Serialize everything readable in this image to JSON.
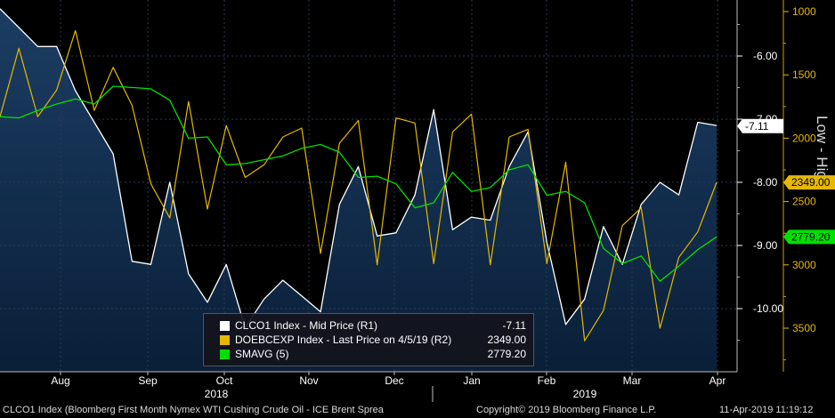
{
  "chart_data": {
    "type": "line",
    "x_labels": [
      "Aug",
      "Sep",
      "Oct",
      "Nov",
      "Dec",
      "Jan",
      "Feb",
      "Mar",
      "Apr"
    ],
    "year_labels": [
      "2018",
      "2019"
    ],
    "left_axis": {
      "ticks": [
        "-6.00",
        "-7.00",
        "-8.00",
        "-9.00",
        "-10.00"
      ],
      "range": [
        -11.0,
        -5.2
      ]
    },
    "right_axis": {
      "ticks": [
        "1000",
        "1500",
        "2000",
        "2500",
        "3000",
        "3500"
      ],
      "range": [
        1000,
        3800
      ],
      "inverted": true,
      "label": "Low - High"
    },
    "series": [
      {
        "name": "CLCO1 Index - Mid Price (R1)",
        "axis": "left",
        "style": "area",
        "color": "#ffffff",
        "fill": "#0e2a4a",
        "last_value": "-7.11",
        "values": [
          -5.25,
          -5.55,
          -5.85,
          -5.85,
          -6.55,
          -7.05,
          -7.55,
          -9.25,
          -9.3,
          -8.0,
          -9.45,
          -9.9,
          -9.3,
          -10.3,
          -9.85,
          -9.55,
          -9.8,
          -10.05,
          -8.35,
          -7.75,
          -8.85,
          -8.8,
          -8.2,
          -6.85,
          -8.75,
          -8.55,
          -8.6,
          -7.75,
          -7.2,
          -8.95,
          -10.25,
          -9.85,
          -8.7,
          -9.3,
          -8.35,
          -8.0,
          -8.2,
          -7.05,
          -7.1
        ]
      },
      {
        "name": "DOEBCEXP Index - Last Price on 4/5/19 (R2)",
        "axis": "right",
        "style": "line",
        "color": "#e6b800",
        "last_value": "2349.00",
        "values": [
          1830,
          1290,
          1830,
          1620,
          1150,
          1780,
          1440,
          1740,
          2360,
          2630,
          1710,
          2560,
          1900,
          2310,
          2210,
          1990,
          1920,
          2910,
          2040,
          1860,
          3000,
          1840,
          1880,
          2990,
          1950,
          1810,
          3000,
          1990,
          1930,
          2990,
          2190,
          3600,
          3360,
          2690,
          2550,
          3500,
          2940,
          2740,
          2349
        ]
      },
      {
        "name": "SMAVG (5)",
        "axis": "right",
        "style": "line",
        "color": "#00e000",
        "last_value": "2779.20",
        "values": [
          1830,
          1840,
          1780,
          1730,
          1690,
          1730,
          1590,
          1600,
          1610,
          1700,
          2000,
          1990,
          2210,
          2200,
          2170,
          2140,
          2080,
          2050,
          2110,
          2310,
          2300,
          2360,
          2550,
          2510,
          2270,
          2420,
          2390,
          2250,
          2210,
          2450,
          2420,
          2510,
          2870,
          2990,
          2930,
          3130,
          3010,
          2880,
          2779
        ]
      }
    ],
    "legend_placement": "bottom-center"
  },
  "legend": {
    "row1_name": "CLCO1 Index - Mid Price (R1)",
    "row1_value": "-7.11",
    "row2_name": "DOEBCEXP Index - Last Price on 4/5/19 (R2)",
    "row2_value": "2349.00",
    "row3_name": "SMAVG (5)",
    "row3_value": "2779.20"
  },
  "footer": {
    "left": "CLCO1 Index (Bloomberg First Month Nymex WTI Cushing Crude Oil - ICE Brent Sprea",
    "center": "Copyright© 2019 Bloomberg Finance L.P.",
    "right": "11-Apr-2019 11:19:12"
  },
  "colors": {
    "background": "#000000",
    "area_fill": "#0e2a4a",
    "white_series": "#ffffff",
    "gold_series": "#e6b800",
    "green_series": "#00e000"
  }
}
